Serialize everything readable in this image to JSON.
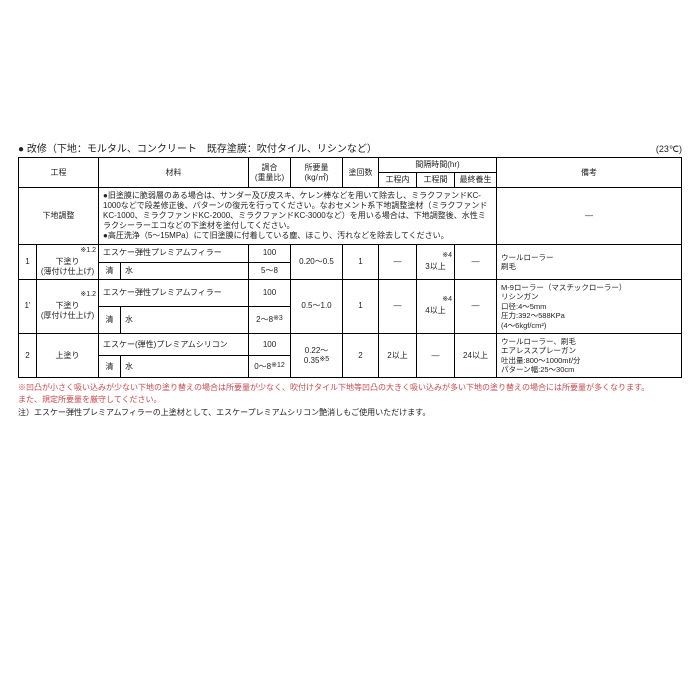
{
  "title": "● 改修（下地：モルタル、コンクリート　既存塗膜：吹付タイル、リシンなど）",
  "temp": "(23℃)",
  "headers": {
    "koutei": "工程",
    "zairyou": "材料",
    "chougou": "調合\n(重量比)",
    "shoyou": "所要量\n(kg/㎡)",
    "kaisuu": "塗回数",
    "kankaku": "間隔時間(hr)",
    "kouteinai": "工程内",
    "kouteikan": "工程間",
    "saishuu": "最終養生",
    "bikou": "備考"
  },
  "prep": {
    "label": "下地調整",
    "text": "●旧塗膜に脆弱層のある場合は、サンダー及び皮スキ、ケレン棒などを用いて除去し、ミラクファンドKC-1000などで段差修正後、パターンの復元を行ってください。なおセメント系下地調整塗材（ミラクファンドKC-1000、ミラクファンドKC-2000、ミラクファンドKC-3000など）を用いる場合は、下地調整後、水性ミラクシーラーエコなどの下塗材を塗付してください。\n●高圧洗浄（5〜15MPa）にて旧塗膜に付着している塵、ほこり、汚れなどを除去してください。",
    "bikou": "—"
  },
  "rows": {
    "r1": {
      "num": "1",
      "koutei_sup": "※1.2",
      "koutei": "下塗り\n(薄付け仕上げ)",
      "material1": "エスケー弾性プレミアムフィラー",
      "ratio1": "100",
      "usage": "0.20〜0.5",
      "material2_label": "清",
      "material2": "水",
      "ratio2": "5〜8",
      "usage2": "—",
      "kaisuu": "1",
      "nai": "—",
      "kan": "3以上",
      "kan_sup": "※4",
      "saishuu": "—",
      "bikou": "ウールローラー\n刷毛"
    },
    "r1p": {
      "num": "1'",
      "koutei_sup": "※1.2",
      "koutei": "下塗り\n(厚付け仕上げ)",
      "material1": "エスケー弾性プレミアムフィラー",
      "ratio1": "100",
      "usage": "0.5〜1.0",
      "material2_label": "清",
      "material2": "水",
      "ratio2": "2〜8",
      "ratio2_sup": "※3",
      "usage2": "—",
      "kaisuu": "1",
      "nai": "—",
      "kan": "4以上",
      "kan_sup": "※4",
      "saishuu": "—",
      "bikou": "M-9ローラー（マスチックローラー）\nリシンガン\n口径:4〜5mm\n圧力:392〜588KPa\n(4〜6kgf/cm²)"
    },
    "r2": {
      "num": "2",
      "koutei": "上塗り",
      "material1": "エスケー(弾性)プレミアムシリコン",
      "ratio1": "100",
      "usage": "0.22〜0.35",
      "usage_sup": "※5",
      "material2_label": "清",
      "material2": "水",
      "ratio2": "0〜8",
      "ratio2_sup": "※12",
      "usage2": "—",
      "kaisuu": "2",
      "nai": "2以上",
      "kan": "—",
      "saishuu": "24以上",
      "bikou": "ウールローラー、刷毛\nエアレススプレーガン\n吐出量:800〜1000mℓ/分\nパターン幅:25〜30cm"
    }
  },
  "foot1": "※凹凸が小さく吸い込みが少ない下地の塗り替えの場合は所要量が少なく、吹付けタイル下地等凹凸の大きく吸い込みが多い下地の塗り替えの場合には所要量が多くなります。\nまた、規定所要量を厳守してください。",
  "foot2": "注）エスケー弾性プレミアムフィラーの上塗材として、エスケープレミアムシリコン艶消しもご使用いただけます。"
}
